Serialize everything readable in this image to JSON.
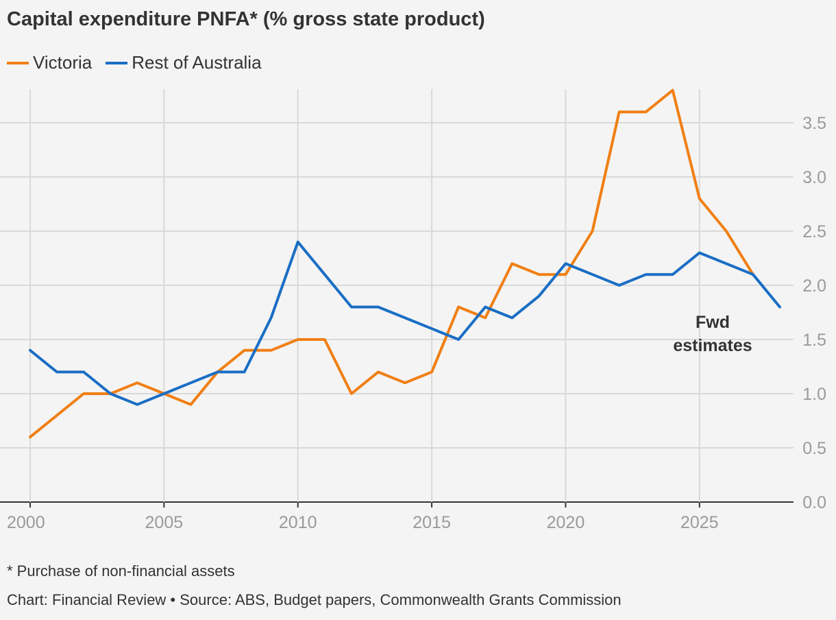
{
  "title": "Capital expenditure PNFA* (% gross state product)",
  "legend": [
    {
      "label": "Victoria",
      "color": "#f07f14"
    },
    {
      "label": "Rest of Australia",
      "color": "#1a6ec4"
    }
  ],
  "footnote": "* Purchase of non-financial assets",
  "source": "Chart: Financial Review • Source: ABS, Budget papers, Commonwealth Grants Commission",
  "chart_data": {
    "type": "line",
    "x": [
      2000,
      2001,
      2002,
      2003,
      2004,
      2005,
      2006,
      2007,
      2008,
      2009,
      2010,
      2011,
      2012,
      2013,
      2014,
      2015,
      2016,
      2017,
      2018,
      2019,
      2020,
      2021,
      2022,
      2023,
      2024,
      2025,
      2026,
      2027,
      2028
    ],
    "series": [
      {
        "name": "Victoria",
        "color": "#f07f14",
        "values": [
          0.6,
          0.8,
          1.0,
          1.0,
          1.1,
          1.0,
          0.9,
          1.2,
          1.4,
          1.4,
          1.5,
          1.5,
          1.0,
          1.2,
          1.1,
          1.2,
          1.8,
          1.7,
          2.2,
          2.1,
          2.1,
          2.5,
          3.6,
          3.6,
          3.8,
          2.8,
          2.5,
          2.1,
          null
        ]
      },
      {
        "name": "Rest of Australia",
        "color": "#1a6ec4",
        "values": [
          1.4,
          1.2,
          1.2,
          1.0,
          0.9,
          1.0,
          1.1,
          1.2,
          1.2,
          1.7,
          2.4,
          2.1,
          1.8,
          1.8,
          1.7,
          1.6,
          1.5,
          1.8,
          1.7,
          1.9,
          2.2,
          2.1,
          2.0,
          2.1,
          2.1,
          2.3,
          2.2,
          2.1,
          1.8
        ]
      }
    ],
    "x_ticks": [
      2000,
      2005,
      2010,
      2015,
      2020,
      2025
    ],
    "y_ticks": [
      0.0,
      0.5,
      1.0,
      1.5,
      2.0,
      2.5,
      3.0,
      3.5
    ],
    "xlim": [
      2000,
      2028
    ],
    "ylim": [
      0,
      3.8
    ],
    "y_axis_side": "right",
    "grid": true,
    "annotation": {
      "lines": [
        "Fwd",
        "estimates"
      ]
    },
    "legend_position": "top-left"
  }
}
